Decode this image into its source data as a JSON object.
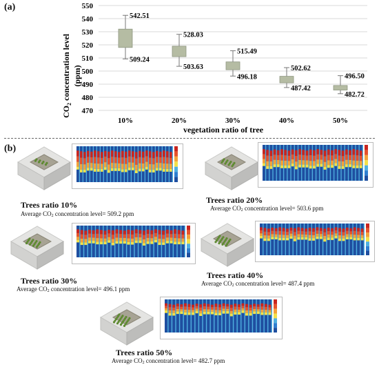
{
  "panel_a_label": "(a)",
  "panel_b_label": "(b)",
  "chart_data": {
    "type": "box",
    "ylabel_line1": "CO",
    "ylabel_sub": "2",
    "ylabel_line1_rest": " concentration level",
    "ylabel_line2": "(ppm)",
    "xlabel": "vegetation ratio of tree",
    "ylim": [
      470,
      550
    ],
    "yticks": [
      470,
      480,
      490,
      500,
      510,
      520,
      530,
      540,
      550
    ],
    "categories": [
      "10%",
      "20%",
      "30%",
      "40%",
      "50%"
    ],
    "boxes": [
      {
        "min": 509.24,
        "q1": 518,
        "q3": 532,
        "max": 542.51
      },
      {
        "min": 503.63,
        "q1": 511,
        "q3": 519,
        "max": 528.03
      },
      {
        "min": 496.18,
        "q1": 501,
        "q3": 507,
        "max": 515.49
      },
      {
        "min": 487.42,
        "q1": 491,
        "q3": 496,
        "max": 502.62
      },
      {
        "min": 482.72,
        "q1": 485.5,
        "q3": 489,
        "max": 496.5
      }
    ],
    "max_labels": [
      "542.51",
      "528.03",
      "515.49",
      "502.62",
      "496.50"
    ],
    "min_labels": [
      "509.24",
      "503.63",
      "496.18",
      "487.42",
      "482.72"
    ],
    "grid": true,
    "colors": {
      "box": "#b5bca3",
      "box_stroke": "#8e9680",
      "whisker": "#777777",
      "grid": "#d9d9d9",
      "marker": "#c8a24a"
    }
  },
  "scenarios": [
    {
      "title": "Trees ratio 10%",
      "sub_prefix": "Average CO",
      "sub_sub": "2",
      "sub_rest": " concentration level= 509.2 ppm",
      "tree_rows": 2
    },
    {
      "title": "Trees ratio 20%",
      "sub_prefix": "Average CO",
      "sub_sub": "2",
      "sub_rest": " concentration level= 503.6 ppm",
      "tree_rows": 3
    },
    {
      "title": "Trees ratio 30%",
      "sub_prefix": "Average CO",
      "sub_sub": "2",
      "sub_rest": " concentration level= 496.1 ppm",
      "tree_rows": 4
    },
    {
      "title": "Trees ratio 40%",
      "sub_prefix": "Average CO",
      "sub_sub": "2",
      "sub_rest": " concentration level= 487.4 ppm",
      "tree_rows": 5
    },
    {
      "title": "Trees ratio 50%",
      "sub_prefix": "Average CO",
      "sub_sub": "2",
      "sub_rest": " concentration level= 482.7 ppm",
      "tree_rows": 6
    }
  ],
  "heatmap_colors": [
    "#1f4fa0",
    "#2f7fd0",
    "#4fb0e0",
    "#f2e14a",
    "#f3a23a",
    "#e6532c",
    "#c8251f"
  ]
}
